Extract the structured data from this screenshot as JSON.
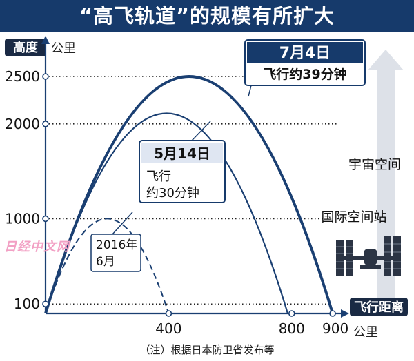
{
  "title": "“高飞轨道”的规模有所扩大",
  "footnote": "（注）根据日本防卫省发布等",
  "watermark": "日经中文网",
  "chart_data": {
    "type": "line",
    "title": "“高飞轨道”的规模有所扩大",
    "y_axis": {
      "label": "高度",
      "unit": "公里",
      "ticks": [
        100,
        1000,
        2000,
        2500
      ],
      "range": [
        0,
        2800
      ],
      "dotted_gridlines": true
    },
    "x_axis": {
      "label": "飞行距离",
      "unit": "公里",
      "ticks": [
        400,
        800,
        900
      ],
      "range": [
        0,
        1000
      ]
    },
    "series": [
      {
        "name": "2016年6月",
        "label_lines": [
          "2016年",
          "6月"
        ],
        "style": "dashed",
        "apogee_km": 1000,
        "range_km": 400
      },
      {
        "name": "5月14日",
        "date": "5月14日",
        "label_lines": [
          "飞行",
          "约30分钟"
        ],
        "style": "solid",
        "apogee_km": 2111,
        "range_km": 787
      },
      {
        "name": "7月4日",
        "date": "7月4日",
        "label_lines": [
          "飞行约39分钟"
        ],
        "style": "bold",
        "apogee_km": 2500,
        "range_km": 933
      }
    ],
    "annotations": {
      "space": "宇宙空间",
      "iss": "国际空间站"
    }
  },
  "colors": {
    "title_bg": "#163a6b",
    "curve": "#1a3f72",
    "axis_label_bg": "#1a2a44",
    "box_border": "#163a6b",
    "space_arrow": "#d8dde6"
  },
  "icons": {
    "station": "space-station-icon"
  }
}
